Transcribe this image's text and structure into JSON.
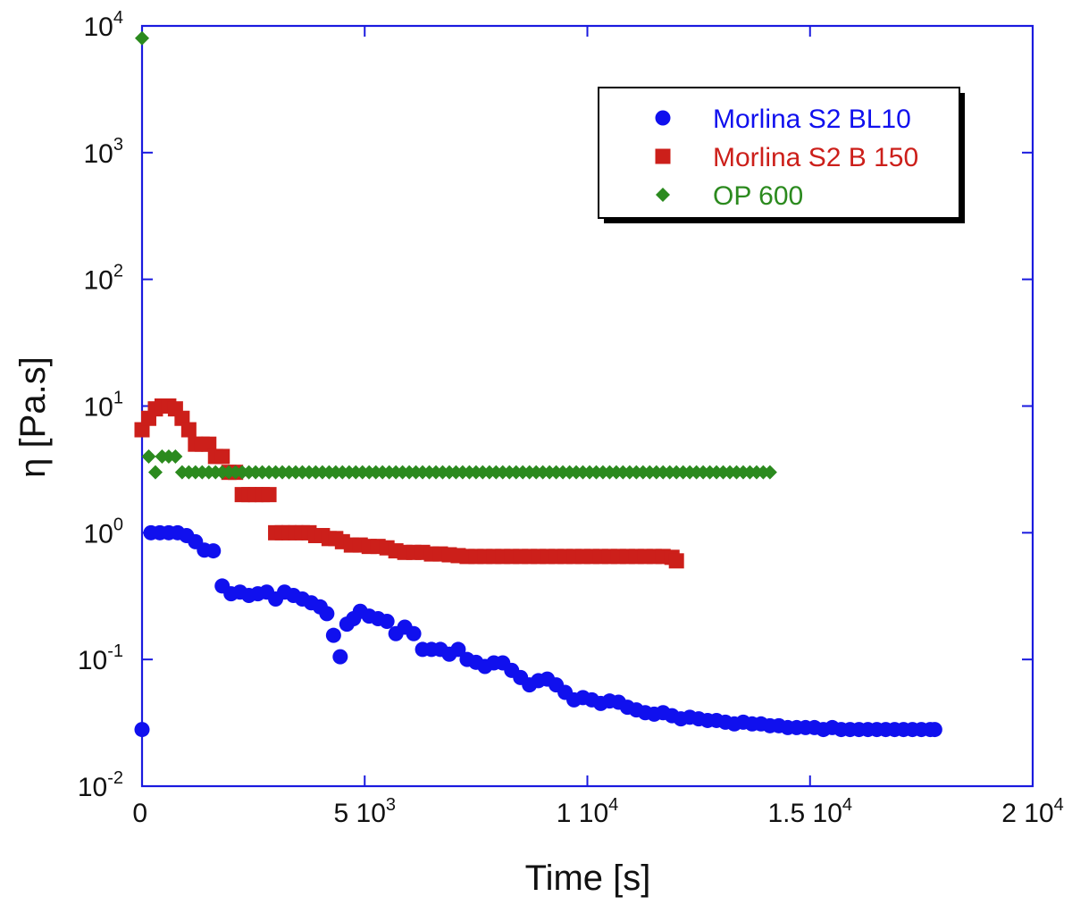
{
  "chart_data": {
    "type": "scatter",
    "title": "",
    "xlabel": "Time [s]",
    "ylabel": "η [Pa.s]",
    "x_scale": "linear",
    "y_scale": "log",
    "xlim": [
      0,
      20000
    ],
    "ylim": [
      0.01,
      10000
    ],
    "x_ticks": [
      {
        "value": 0,
        "mant": "0",
        "exp": ""
      },
      {
        "value": 5000,
        "mant": "5 10",
        "exp": "3"
      },
      {
        "value": 10000,
        "mant": "1 10",
        "exp": "4"
      },
      {
        "value": 15000,
        "mant": "1.5 10",
        "exp": "4"
      },
      {
        "value": 20000,
        "mant": "2 10",
        "exp": "4"
      }
    ],
    "y_ticks": [
      {
        "value": 0.01,
        "mant": "10",
        "exp": "-2"
      },
      {
        "value": 0.1,
        "mant": "10",
        "exp": "-1"
      },
      {
        "value": 1,
        "mant": "10",
        "exp": "0"
      },
      {
        "value": 10,
        "mant": "10",
        "exp": "1"
      },
      {
        "value": 100,
        "mant": "10",
        "exp": "2"
      },
      {
        "value": 1000,
        "mant": "10",
        "exp": "3"
      },
      {
        "value": 10000,
        "mant": "10",
        "exp": "4"
      }
    ],
    "grid": false,
    "legend": "top-right",
    "series": [
      {
        "name": "Morlina S2 BL10",
        "color": "#1010ee",
        "marker": "circle",
        "x": [
          0,
          200,
          400,
          600,
          800,
          1000,
          1200,
          1400,
          1600,
          1800,
          2000,
          2200,
          2400,
          2600,
          2800,
          3000,
          3200,
          3400,
          3600,
          3800,
          4000,
          4150,
          4300,
          4450,
          4600,
          4750,
          4900,
          5100,
          5300,
          5500,
          5700,
          5900,
          6100,
          6300,
          6500,
          6700,
          6900,
          7100,
          7300,
          7500,
          7700,
          7900,
          8100,
          8300,
          8500,
          8700,
          8900,
          9100,
          9300,
          9500,
          9700,
          9900,
          10100,
          10300,
          10500,
          10700,
          10900,
          11100,
          11300,
          11500,
          11700,
          11900,
          12100,
          12300,
          12500,
          12700,
          12900,
          13100,
          13300,
          13500,
          13700,
          13900,
          14100,
          14300,
          14500,
          14700,
          14900,
          15100,
          15300,
          15500,
          15700,
          15900,
          16100,
          16300,
          16500,
          16700,
          16900,
          17100,
          17300,
          17500,
          17700,
          17800
        ],
        "y": [
          0.028,
          1.0,
          1.0,
          1.0,
          1.0,
          0.95,
          0.85,
          0.73,
          0.72,
          0.38,
          0.33,
          0.34,
          0.32,
          0.33,
          0.34,
          0.3,
          0.34,
          0.32,
          0.3,
          0.28,
          0.26,
          0.23,
          0.155,
          0.105,
          0.19,
          0.21,
          0.24,
          0.22,
          0.21,
          0.2,
          0.16,
          0.18,
          0.16,
          0.12,
          0.12,
          0.12,
          0.11,
          0.12,
          0.1,
          0.095,
          0.088,
          0.094,
          0.094,
          0.082,
          0.072,
          0.063,
          0.068,
          0.07,
          0.063,
          0.055,
          0.048,
          0.05,
          0.048,
          0.045,
          0.047,
          0.046,
          0.042,
          0.04,
          0.038,
          0.037,
          0.038,
          0.036,
          0.034,
          0.035,
          0.034,
          0.033,
          0.033,
          0.032,
          0.031,
          0.032,
          0.031,
          0.031,
          0.03,
          0.03,
          0.029,
          0.029,
          0.029,
          0.029,
          0.028,
          0.029,
          0.028,
          0.028,
          0.028,
          0.028,
          0.028,
          0.028,
          0.028,
          0.028,
          0.028,
          0.028,
          0.028,
          0.028
        ]
      },
      {
        "name": "Morlina S2 B 150",
        "color": "#cc1f1a",
        "marker": "square",
        "x": [
          0,
          150,
          300,
          450,
          600,
          750,
          900,
          1050,
          1200,
          1350,
          1500,
          1650,
          1800,
          1950,
          2100,
          2250,
          2400,
          2550,
          2700,
          2850,
          3000,
          3150,
          3300,
          3450,
          3600,
          3750,
          3900,
          4050,
          4200,
          4350,
          4500,
          4700,
          4900,
          5100,
          5300,
          5500,
          5700,
          5900,
          6100,
          6300,
          6500,
          6700,
          6900,
          7100,
          7300,
          7500,
          7700,
          7900,
          8100,
          8300,
          8500,
          8700,
          8900,
          9100,
          9300,
          9500,
          9700,
          9900,
          10100,
          10300,
          10500,
          10700,
          10900,
          11100,
          11300,
          11500,
          11700,
          11900,
          12000
        ],
        "y": [
          6.5,
          8.0,
          9.5,
          10.0,
          10.0,
          9.5,
          8.0,
          6.5,
          5.0,
          5.0,
          5.0,
          4.0,
          4.0,
          3.0,
          3.0,
          2.0,
          2.0,
          2.0,
          2.0,
          2.0,
          1.0,
          1.0,
          1.0,
          1.0,
          1.0,
          1.0,
          0.95,
          0.95,
          0.9,
          0.9,
          0.85,
          0.8,
          0.8,
          0.78,
          0.78,
          0.76,
          0.72,
          0.7,
          0.7,
          0.7,
          0.68,
          0.68,
          0.67,
          0.66,
          0.65,
          0.65,
          0.65,
          0.65,
          0.65,
          0.65,
          0.65,
          0.65,
          0.65,
          0.65,
          0.65,
          0.65,
          0.65,
          0.65,
          0.65,
          0.65,
          0.65,
          0.65,
          0.65,
          0.65,
          0.65,
          0.65,
          0.65,
          0.64,
          0.6
        ]
      },
      {
        "name": "OP 600",
        "color": "#2b8a1e",
        "marker": "diamond",
        "x": [
          0,
          150,
          300,
          450,
          600,
          750,
          900,
          1050,
          1200,
          1350,
          1500,
          1650,
          1800,
          1950,
          2100,
          2250,
          2400,
          2550,
          2700,
          2850,
          3000,
          3150,
          3300,
          3450,
          3600,
          3750,
          3900,
          4050,
          4200,
          4350,
          4500,
          4650,
          4800,
          4950,
          5100,
          5250,
          5400,
          5550,
          5700,
          5850,
          6000,
          6150,
          6300,
          6450,
          6600,
          6750,
          6900,
          7050,
          7200,
          7350,
          7500,
          7650,
          7800,
          7950,
          8100,
          8250,
          8400,
          8550,
          8700,
          8850,
          9000,
          9150,
          9300,
          9450,
          9600,
          9750,
          9900,
          10050,
          10200,
          10350,
          10500,
          10650,
          10800,
          10950,
          11100,
          11250,
          11400,
          11550,
          11700,
          11850,
          12000,
          12150,
          12300,
          12450,
          12600,
          12750,
          12900,
          13050,
          13200,
          13350,
          13500,
          13650,
          13800,
          13950,
          14100
        ],
        "y": [
          8000,
          4.0,
          3.0,
          4.0,
          4.0,
          4.0,
          3.0,
          3.0,
          3.0,
          3.0,
          3.0,
          3.0,
          3.0,
          3.0,
          3.0,
          3.0,
          3.0,
          3.0,
          3.0,
          3.0,
          3.0,
          3.0,
          3.0,
          3.0,
          3.0,
          3.0,
          3.0,
          3.0,
          3.0,
          3.0,
          3.0,
          3.0,
          3.0,
          3.0,
          3.0,
          3.0,
          3.0,
          3.0,
          3.0,
          3.0,
          3.0,
          3.0,
          3.0,
          3.0,
          3.0,
          3.0,
          3.0,
          3.0,
          3.0,
          3.0,
          3.0,
          3.0,
          3.0,
          3.0,
          3.0,
          3.0,
          3.0,
          3.0,
          3.0,
          3.0,
          3.0,
          3.0,
          3.0,
          3.0,
          3.0,
          3.0,
          3.0,
          3.0,
          3.0,
          3.0,
          3.0,
          3.0,
          3.0,
          3.0,
          3.0,
          3.0,
          3.0,
          3.0,
          3.0,
          3.0,
          3.0,
          3.0,
          3.0,
          3.0,
          3.0,
          3.0,
          3.0,
          3.0,
          3.0,
          3.0,
          3.0,
          3.0,
          3.0,
          3.0,
          3.0
        ]
      }
    ]
  }
}
